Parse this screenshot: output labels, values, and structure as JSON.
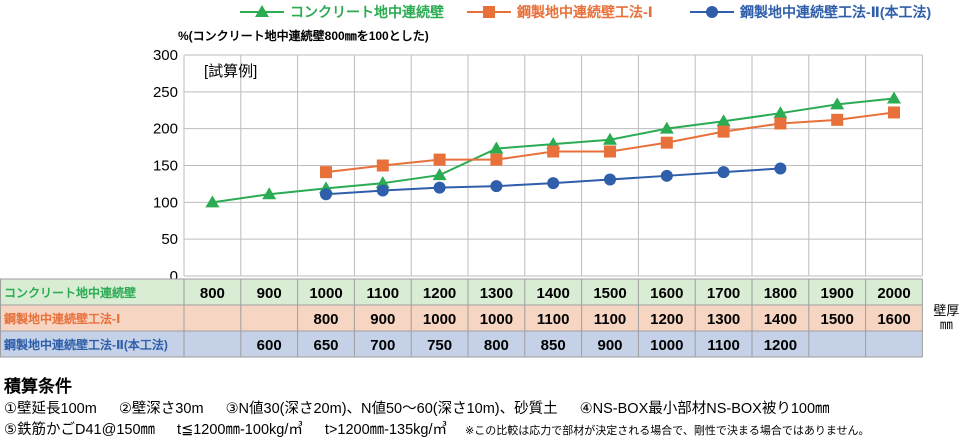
{
  "chart_data": {
    "type": "line",
    "ylabel": "%(コンクリート地中連続壁800㎜を100とした)",
    "annotation": "[試算例]",
    "ylim": [
      0,
      300
    ],
    "yticks": [
      "0",
      "50",
      "100",
      "150",
      "200",
      "250",
      "300"
    ],
    "grid": true,
    "legend_position": "top",
    "x_unit": "壁厚\n㎜",
    "columns": 13,
    "series": [
      {
        "name": "コンクリート地中連続壁",
        "color": "#2bab52",
        "marker": "triangle",
        "cols": [
          0,
          1,
          2,
          3,
          4,
          5,
          6,
          7,
          8,
          9,
          10,
          11,
          12
        ],
        "thickness": [
          "800",
          "900",
          "1000",
          "1100",
          "1200",
          "1300",
          "1400",
          "1500",
          "1600",
          "1700",
          "1800",
          "1900",
          "2000"
        ],
        "values": [
          100,
          111,
          119,
          126,
          137,
          173,
          179,
          185,
          200,
          210,
          221,
          233,
          241
        ]
      },
      {
        "name": "鋼製地中連続壁工法-Ⅰ",
        "color": "#e8703a",
        "marker": "square",
        "cols": [
          2,
          3,
          4,
          5,
          6,
          7,
          8,
          9,
          10,
          11,
          12
        ],
        "thickness": [
          "800",
          "900",
          "1000",
          "1000",
          "1100",
          "1100",
          "1200",
          "1300",
          "1400",
          "1500",
          "1600"
        ],
        "values": [
          141,
          150,
          158,
          158,
          169,
          169,
          181,
          196,
          207,
          212,
          222
        ]
      },
      {
        "name": "鋼製地中連続壁工法-Ⅱ(本工法)",
        "color": "#2f5eaa",
        "marker": "circle",
        "cols": [
          2,
          3,
          4,
          5,
          6,
          7,
          8,
          9,
          10
        ],
        "thickness": [
          "650",
          "700",
          "750",
          "800",
          "850",
          "900",
          "1000",
          "1100",
          "1200"
        ],
        "table_cols": [
          1,
          2,
          3,
          4,
          5,
          6,
          7,
          8,
          9,
          10
        ],
        "table_values": [
          "600",
          "650",
          "700",
          "750",
          "800",
          "850",
          "900",
          "1000",
          "1100",
          "1200"
        ],
        "values": [
          111,
          116,
          120,
          122,
          126,
          131,
          136,
          141,
          146
        ]
      }
    ],
    "table_rows": [
      {
        "label": "コンクリート地中連続壁",
        "bg": "#d9ecd4",
        "cells": [
          "800",
          "900",
          "1000",
          "1100",
          "1200",
          "1300",
          "1400",
          "1500",
          "1600",
          "1700",
          "1800",
          "1900",
          "2000"
        ]
      },
      {
        "label": "鋼製地中連続壁工法-Ⅰ",
        "bg": "#f6d5c3",
        "cells": [
          "",
          "",
          "800",
          "900",
          "1000",
          "1000",
          "1100",
          "1100",
          "1200",
          "1300",
          "1400",
          "1500",
          "1600"
        ]
      },
      {
        "label": "鋼製地中連続壁工法-Ⅱ(本工法)",
        "bg": "#c4d1e6",
        "cells": [
          "",
          "600",
          "650",
          "700",
          "750",
          "800",
          "850",
          "900",
          "1000",
          "1100",
          "1200",
          "",
          ""
        ]
      }
    ]
  },
  "notes": {
    "title": "積算条件",
    "line1": [
      "①壁延長100m",
      "②壁深さ30m",
      "③N値30(深さ20m)、N値50～60(深さ10m)、砂質土",
      "④NS-BOX最小部材NS-BOX被り100㎜"
    ],
    "line2": [
      "⑤鉄筋かごD41@150㎜",
      "t≦1200㎜-100kg/㎥",
      "t>1200㎜-135kg/㎥"
    ],
    "footnote": "※この比較は応力で部材が決定される場合で、剛性で決まる場合ではありません。"
  }
}
